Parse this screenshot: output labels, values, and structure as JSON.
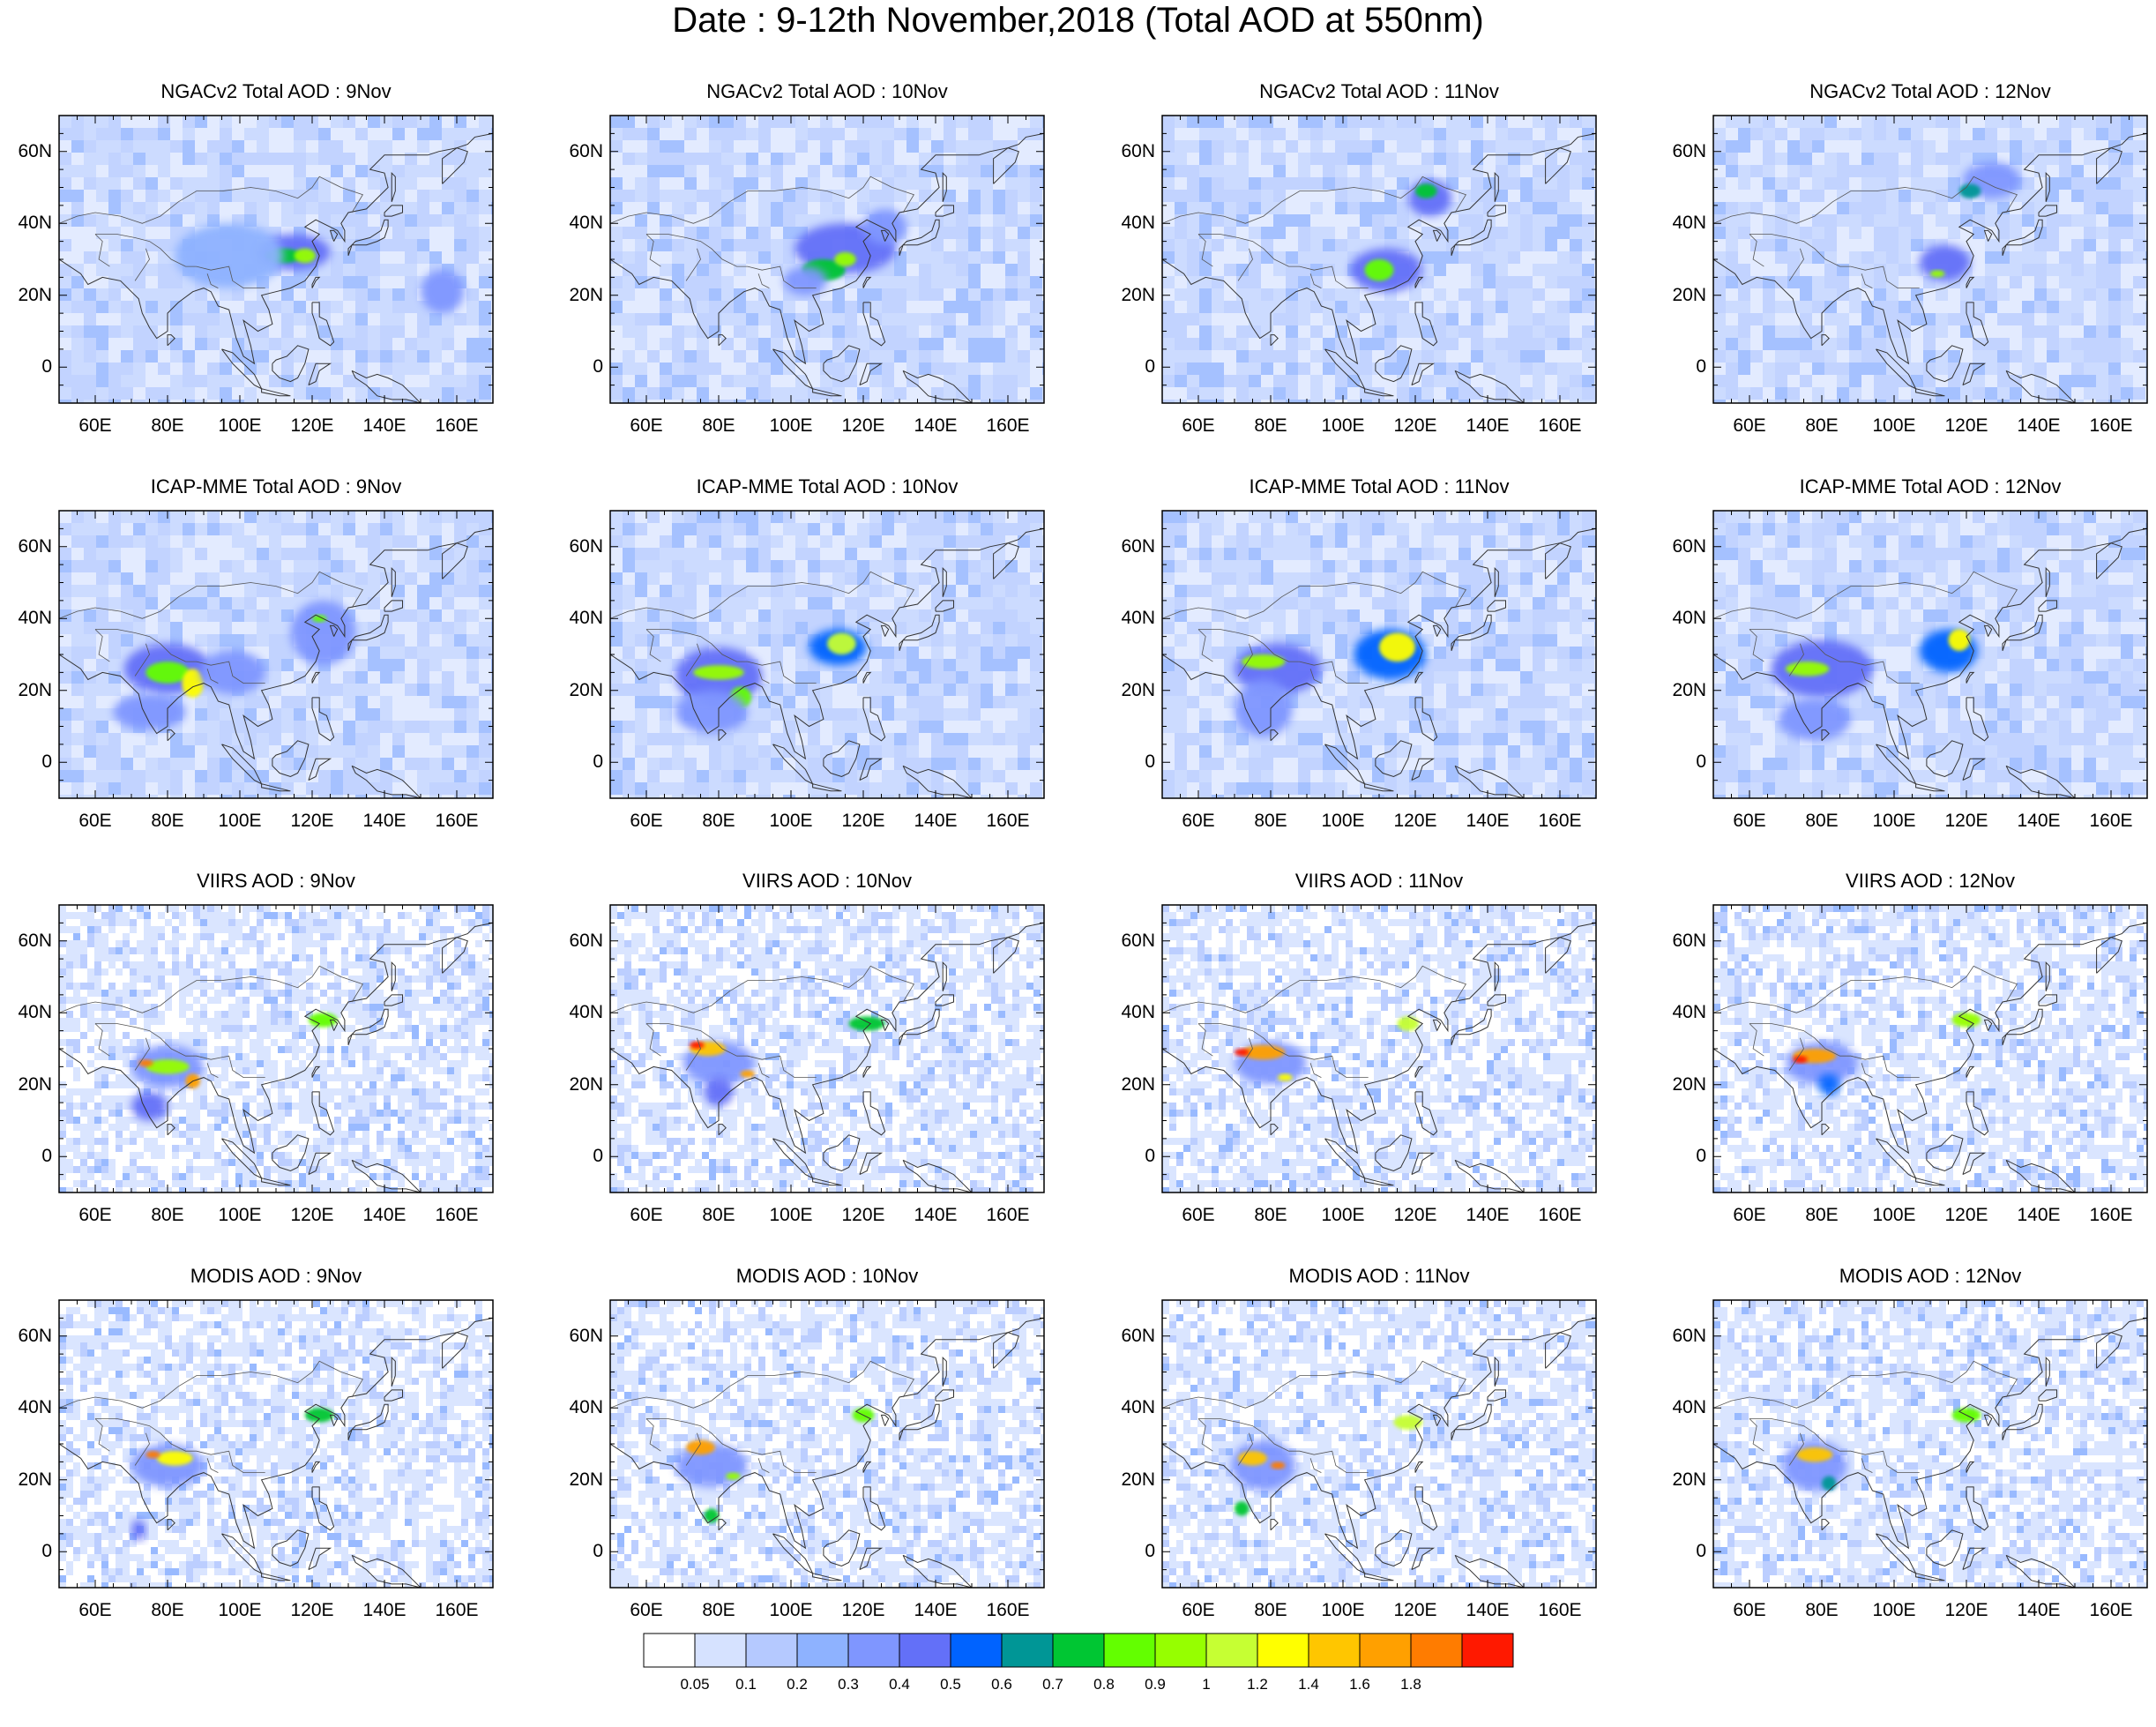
{
  "title": "Date : 9-12th November,2018 (Total AOD at 550nm)",
  "rows": [
    {
      "model": "NGACv2 Total AOD",
      "titles": [
        "NGACv2 Total AOD : 9Nov",
        "NGACv2 Total AOD : 10Nov",
        "NGACv2 Total AOD : 11Nov",
        "NGACv2 Total AOD : 12Nov"
      ]
    },
    {
      "model": "ICAP-MME Total AOD",
      "titles": [
        "ICAP-MME Total AOD : 9Nov",
        "ICAP-MME Total AOD : 10Nov",
        "ICAP-MME Total AOD : 11Nov",
        "ICAP-MME Total AOD : 12Nov"
      ]
    },
    {
      "model": "VIIRS AOD",
      "titles": [
        "VIIRS AOD : 9Nov",
        "VIIRS AOD : 10Nov",
        "VIIRS AOD : 11Nov",
        "VIIRS AOD : 12Nov"
      ]
    },
    {
      "model": "MODIS AOD",
      "titles": [
        "MODIS AOD : 9Nov",
        "MODIS AOD : 10Nov",
        "MODIS AOD : 11Nov",
        "MODIS AOD : 12Nov"
      ]
    }
  ],
  "lat_ticks": [
    "60N",
    "40N",
    "20N",
    "0"
  ],
  "lon_ticks": [
    "60E",
    "80E",
    "100E",
    "120E",
    "140E",
    "160E"
  ],
  "colorbar": {
    "labels": [
      "0.05",
      "0.1",
      "0.2",
      "0.3",
      "0.4",
      "0.5",
      "0.6",
      "0.7",
      "0.8",
      "0.9",
      "1",
      "1.2",
      "1.4",
      "1.6",
      "1.8"
    ],
    "colors": [
      "#ffffff",
      "#d6e2ff",
      "#b5c9ff",
      "#8eb2ff",
      "#7f96ff",
      "#6370f8",
      "#0063ff",
      "#009696",
      "#00c633",
      "#63ff00",
      "#96ff00",
      "#c6ff33",
      "#ffff00",
      "#ffc600",
      "#ffa000",
      "#ff7c00",
      "#ff1900"
    ]
  },
  "map": {
    "lon_range": [
      50,
      170
    ],
    "lat_range": [
      -10,
      70
    ]
  }
}
